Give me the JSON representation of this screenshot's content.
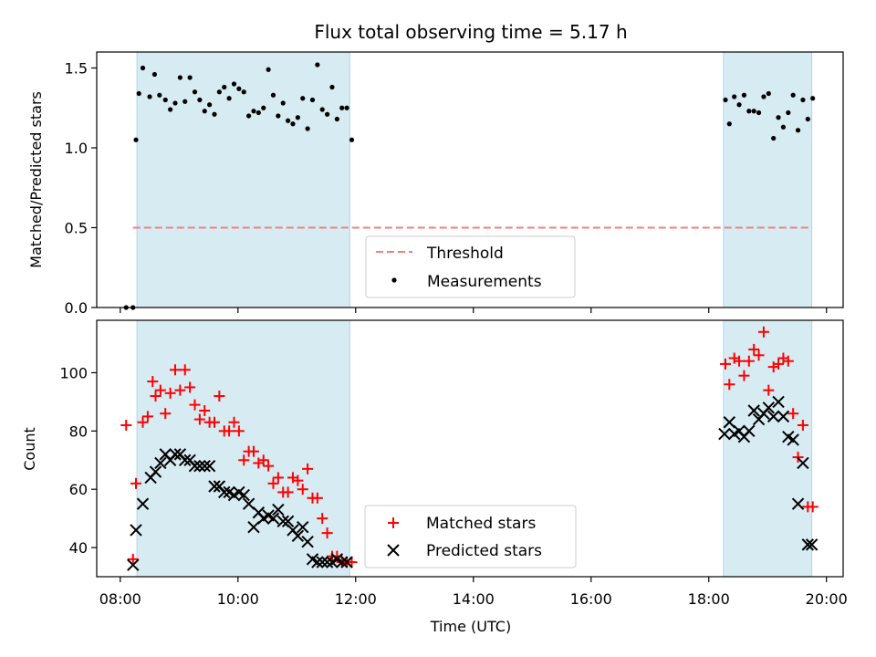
{
  "chart_data": [
    {
      "type": "scatter",
      "title": "Flux total observing time = 5.17 h",
      "ylabel": "Matched/Predicted stars",
      "xlabel": "",
      "xlim": [
        "07:36",
        "20:17"
      ],
      "ylim": [
        0,
        1.6
      ],
      "yticks": [
        0.0,
        0.5,
        1.0,
        1.5
      ],
      "ytick_labels": [
        "0.0",
        "0.5",
        "1.0",
        "1.5"
      ],
      "grid": false,
      "legend_position": "bottom-center",
      "shaded_intervals": [
        [
          "08:17",
          "11:54"
        ],
        [
          "18:15",
          "19:45"
        ]
      ],
      "threshold": {
        "name": "Threshold",
        "value": 0.5,
        "x_start": "08:13",
        "x_end": "19:43",
        "color": "#f08080"
      },
      "series": [
        {
          "name": "Measurements",
          "color": "#000000",
          "marker": "dot",
          "x": [
            "08:06",
            "08:13",
            "08:16",
            "08:19",
            "08:23",
            "08:30",
            "08:35",
            "08:40",
            "08:46",
            "08:51",
            "08:56",
            "09:01",
            "09:06",
            "09:11",
            "09:16",
            "09:21",
            "09:26",
            "09:31",
            "09:36",
            "09:41",
            "09:46",
            "09:51",
            "09:56",
            "10:01",
            "10:06",
            "10:11",
            "10:16",
            "10:21",
            "10:26",
            "10:31",
            "10:36",
            "10:41",
            "10:46",
            "10:51",
            "10:56",
            "11:01",
            "11:06",
            "11:11",
            "11:16",
            "11:21",
            "11:26",
            "11:31",
            "11:36",
            "11:41",
            "11:46",
            "11:51",
            "11:56",
            "18:17",
            "18:21",
            "18:26",
            "18:31",
            "18:36",
            "18:41",
            "18:46",
            "18:51",
            "18:56",
            "19:01",
            "19:06",
            "19:11",
            "19:16",
            "19:21",
            "19:26",
            "19:31",
            "19:36",
            "19:41",
            "19:46"
          ],
          "y": [
            0.0,
            0.0,
            1.05,
            1.34,
            1.5,
            1.32,
            1.46,
            1.33,
            1.3,
            1.24,
            1.28,
            1.44,
            1.29,
            1.44,
            1.35,
            1.3,
            1.23,
            1.27,
            1.21,
            1.35,
            1.38,
            1.31,
            1.4,
            1.37,
            1.35,
            1.2,
            1.23,
            1.22,
            1.25,
            1.49,
            1.33,
            1.2,
            1.28,
            1.17,
            1.15,
            1.19,
            1.31,
            1.12,
            1.3,
            1.52,
            1.24,
            1.21,
            1.38,
            1.18,
            1.25,
            1.25,
            1.05,
            1.3,
            1.15,
            1.32,
            1.27,
            1.33,
            1.23,
            1.23,
            1.22,
            1.32,
            1.34,
            1.06,
            1.19,
            1.13,
            1.22,
            1.33,
            1.11,
            1.3,
            1.18,
            1.31
          ]
        }
      ]
    },
    {
      "type": "scatter",
      "title": "",
      "ylabel": "Count",
      "xlabel": "Time (UTC)",
      "xlim": [
        "07:36",
        "20:17"
      ],
      "ylim": [
        30,
        118
      ],
      "yticks": [
        40,
        60,
        80,
        100
      ],
      "xticks": [
        "08:00",
        "10:00",
        "12:00",
        "14:00",
        "16:00",
        "18:00",
        "20:00"
      ],
      "grid": false,
      "legend_position": "bottom-center",
      "shaded_intervals": [
        [
          "08:17",
          "11:54"
        ],
        [
          "18:15",
          "19:45"
        ]
      ],
      "series": [
        {
          "name": "Matched stars",
          "color": "#ff0000",
          "marker": "plus",
          "x": [
            "08:06",
            "08:13",
            "08:16",
            "08:23",
            "08:28",
            "08:33",
            "08:36",
            "08:41",
            "08:46",
            "08:51",
            "08:56",
            "09:01",
            "09:06",
            "09:11",
            "09:16",
            "09:21",
            "09:26",
            "09:31",
            "09:36",
            "09:41",
            "09:46",
            "09:51",
            "09:56",
            "10:01",
            "10:06",
            "10:11",
            "10:16",
            "10:21",
            "10:26",
            "10:31",
            "10:36",
            "10:41",
            "10:46",
            "10:51",
            "10:56",
            "11:01",
            "11:06",
            "11:11",
            "11:16",
            "11:21",
            "11:26",
            "11:31",
            "11:36",
            "11:41",
            "11:46",
            "11:51",
            "11:56",
            "18:17",
            "18:21",
            "18:26",
            "18:31",
            "18:36",
            "18:41",
            "18:46",
            "18:51",
            "18:56",
            "19:01",
            "19:06",
            "19:11",
            "19:16",
            "19:21",
            "19:26",
            "19:31",
            "19:36",
            "19:41",
            "19:46"
          ],
          "y": [
            82,
            36,
            62,
            83,
            85,
            97,
            92,
            94,
            86,
            93,
            101,
            94,
            101,
            95,
            89,
            84,
            87,
            83,
            83,
            92,
            80,
            80,
            83,
            80,
            70,
            73,
            73,
            69,
            70,
            68,
            62,
            64,
            59,
            59,
            64,
            63,
            60,
            67,
            57,
            57,
            50,
            45,
            37,
            37,
            35,
            35,
            35,
            103,
            96,
            105,
            104,
            99,
            104,
            108,
            106,
            114,
            94,
            102,
            103,
            105,
            104,
            86,
            71,
            82,
            54,
            54
          ]
        },
        {
          "name": "Predicted stars",
          "color": "#000000",
          "marker": "x",
          "x": [
            "08:13",
            "08:16",
            "08:23",
            "08:31",
            "08:36",
            "08:41",
            "08:46",
            "08:51",
            "08:56",
            "09:01",
            "09:06",
            "09:11",
            "09:16",
            "09:21",
            "09:26",
            "09:31",
            "09:36",
            "09:41",
            "09:46",
            "09:51",
            "09:56",
            "10:01",
            "10:06",
            "10:11",
            "10:16",
            "10:21",
            "10:26",
            "10:31",
            "10:36",
            "10:41",
            "10:46",
            "10:51",
            "10:56",
            "11:01",
            "11:06",
            "11:11",
            "11:16",
            "11:21",
            "11:26",
            "11:31",
            "11:36",
            "11:41",
            "11:46",
            "11:51",
            "18:16",
            "18:21",
            "18:26",
            "18:31",
            "18:36",
            "18:41",
            "18:46",
            "18:51",
            "18:56",
            "19:01",
            "19:06",
            "19:11",
            "19:16",
            "19:21",
            "19:26",
            "19:31",
            "19:36",
            "19:41",
            "19:45"
          ],
          "y": [
            34,
            46,
            55,
            64,
            66,
            69,
            72,
            70,
            72,
            72,
            70,
            70,
            68,
            68,
            68,
            68,
            61,
            61,
            59,
            59,
            58,
            59,
            58,
            55,
            47,
            52,
            50,
            51,
            50,
            53,
            49,
            49,
            46,
            44,
            47,
            42,
            36,
            35,
            35,
            35,
            35,
            36,
            35,
            35,
            79,
            83,
            79,
            80,
            78,
            80,
            87,
            84,
            86,
            88,
            85,
            90,
            85,
            78,
            77,
            55,
            69,
            41,
            41
          ]
        }
      ]
    }
  ]
}
